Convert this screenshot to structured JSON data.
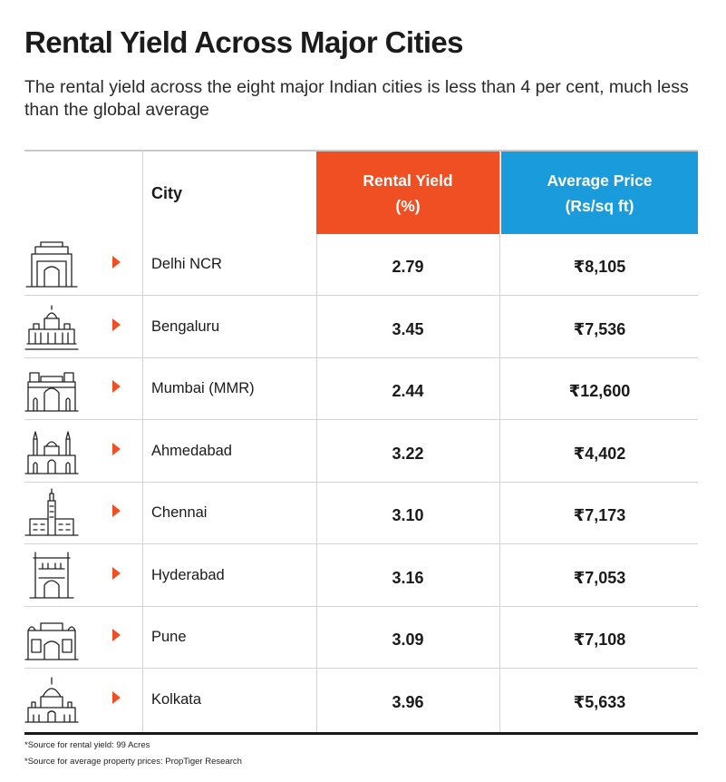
{
  "title": "Rental Yield Across Major Cities",
  "subtitle": "The rental yield across the eight major Indian cities is less than 4 per cent, much less than the global average",
  "colors": {
    "yield_header": "#ef4f23",
    "price_header": "#199bdc",
    "arrow": "#ef4f23"
  },
  "chart_data": {
    "type": "table",
    "columns": {
      "city": "City",
      "yield_line1": "Rental Yield",
      "yield_line2": "(%)",
      "price_line1": "Average Price",
      "price_line2": "(Rs/sq ft)"
    },
    "rows": [
      {
        "icon": "india-gate-icon",
        "city": "Delhi NCR",
        "yield": "2.79",
        "price": "₹8,105"
      },
      {
        "icon": "vidhana-soudha-icon",
        "city": "Bengaluru",
        "yield": "3.45",
        "price": "₹7,536"
      },
      {
        "icon": "gateway-of-india-icon",
        "city": "Mumbai (MMR)",
        "yield": "2.44",
        "price": "₹12,600"
      },
      {
        "icon": "jama-masjid-icon",
        "city": "Ahmedabad",
        "yield": "3.22",
        "price": "₹4,402"
      },
      {
        "icon": "lic-building-icon",
        "city": "Chennai",
        "yield": "3.10",
        "price": "₹7,173"
      },
      {
        "icon": "charminar-icon",
        "city": "Hyderabad",
        "yield": "3.16",
        "price": "₹7,053"
      },
      {
        "icon": "shaniwar-wada-icon",
        "city": "Pune",
        "yield": "3.09",
        "price": "₹7,108"
      },
      {
        "icon": "victoria-memorial-icon",
        "city": "Kolkata",
        "yield": "3.96",
        "price": "₹5,633"
      }
    ]
  },
  "footnotes": {
    "source_yield": "*Source for rental yield: 99 Acres",
    "source_price": "*Source for average property prices: PropTiger Research"
  }
}
